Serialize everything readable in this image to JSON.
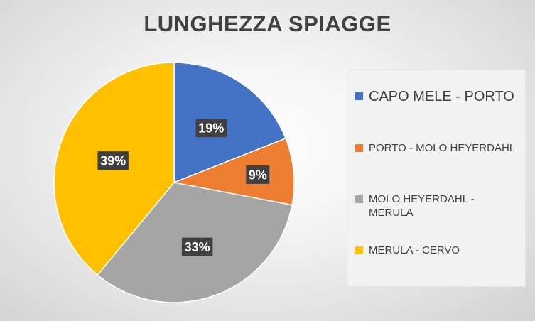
{
  "chart_data": {
    "type": "pie",
    "title": "LUNGHEZZA SPIAGGE",
    "legend_position": "right",
    "slices": [
      {
        "name": "CAPO MELE - PORTO",
        "value": 19,
        "label": "19%",
        "color": "#4472C4"
      },
      {
        "name": "PORTO - MOLO HEYERDAHL",
        "value": 9,
        "label": "9%",
        "color": "#ED7D31"
      },
      {
        "name": "MOLO HEYERDAHL - MERULA",
        "value": 33,
        "label": "33%",
        "color": "#A5A5A5"
      },
      {
        "name": "MERULA - CERVO",
        "value": 39,
        "label": "39%",
        "color": "#FFC000"
      }
    ]
  }
}
